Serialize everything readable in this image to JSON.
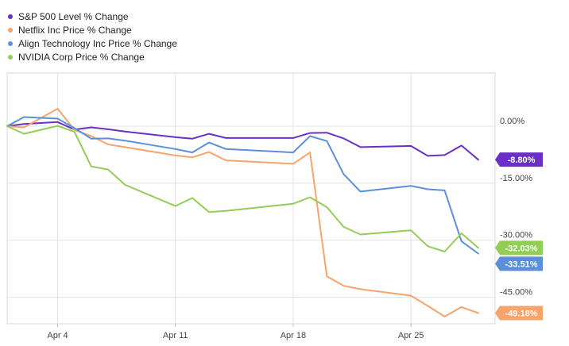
{
  "chart_data": {
    "type": "line",
    "title": "",
    "xlabel": "",
    "ylabel": "",
    "x_ticks": [
      "Apr 4",
      "Apr 11",
      "Apr 18",
      "Apr 25"
    ],
    "x_tick_index": [
      3,
      10,
      17,
      24
    ],
    "y_ticks": [
      0,
      -15,
      -30,
      -45
    ],
    "y_tick_labels": [
      "0.00%",
      "-15.00%",
      "-30.00%",
      "-45.00%"
    ],
    "ylim": [
      -52,
      14
    ],
    "x_days": [
      0,
      1,
      3,
      4,
      5,
      6,
      7,
      10,
      11,
      12,
      13,
      17,
      18,
      19,
      20,
      21,
      24,
      25,
      26,
      27,
      28
    ],
    "legend_position": "top-left",
    "grid": true,
    "series": [
      {
        "name": "S&P 500 Level % Change",
        "color": "#6a2fc8",
        "values": [
          0,
          0.6,
          1.1,
          -0.9,
          -0.3,
          -0.8,
          -1.4,
          -2.9,
          -3.3,
          -2.0,
          -3.1,
          -3.1,
          -1.8,
          -1.7,
          -3.2,
          -5.5,
          -5.2,
          -7.8,
          -7.6,
          -5.1,
          -8.8
        ],
        "end_label": "-8.80%"
      },
      {
        "name": "Netflix Inc Price % Change",
        "color": "#f7a46b",
        "values": [
          0,
          -0.3,
          4.6,
          -1.0,
          -2.6,
          -4.8,
          -5.5,
          -7.7,
          -8.2,
          -6.8,
          -9.0,
          -9.9,
          -6.9,
          -39.5,
          -42.0,
          -42.9,
          -44.6,
          -47.3,
          -50.1,
          -47.6,
          -49.18
        ],
        "end_label": "-49.18%"
      },
      {
        "name": "Align Technology Inc Price % Change",
        "color": "#5b8fd9",
        "values": [
          0,
          2.4,
          2.0,
          -0.5,
          -3.3,
          -3.2,
          -3.8,
          -6.0,
          -6.9,
          -4.3,
          -6.0,
          -6.9,
          -2.6,
          -3.9,
          -12.6,
          -17.2,
          -15.7,
          -16.6,
          -16.9,
          -30.3,
          -33.51
        ],
        "end_label": "-33.51%"
      },
      {
        "name": "NVIDIA Corp Price % Change",
        "color": "#92cd56",
        "values": [
          0,
          -2.0,
          0.1,
          -1.5,
          -10.6,
          -11.4,
          -15.4,
          -21.0,
          -18.9,
          -22.6,
          -22.3,
          -20.4,
          -18.7,
          -21.3,
          -26.5,
          -28.5,
          -27.4,
          -31.6,
          -33.0,
          -28.2,
          -32.03
        ],
        "end_label": "-32.03%"
      }
    ]
  }
}
